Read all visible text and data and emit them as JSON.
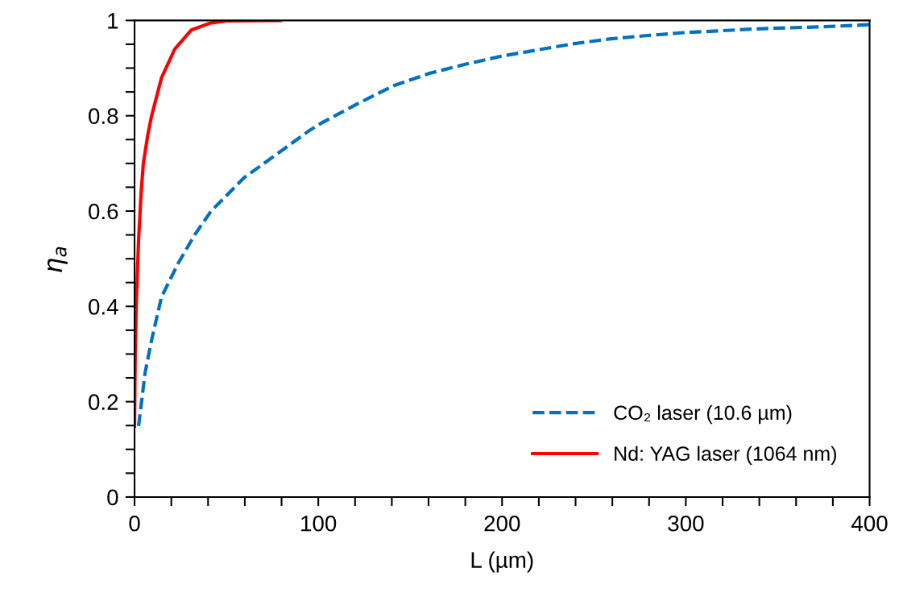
{
  "chart_data": {
    "type": "line",
    "xlabel": "L (µm)",
    "ylabel": "η$_{a}$",
    "xlim": [
      0,
      400
    ],
    "ylim": [
      0,
      1
    ],
    "xticks": [
      0,
      {
        "value": 20,
        "label": null
      },
      {
        "value": 40,
        "label": null
      },
      {
        "value": 60,
        "label": null
      },
      {
        "value": 80,
        "label": null
      },
      100,
      {
        "value": 120,
        "label": null
      },
      {
        "value": 140,
        "label": null
      },
      {
        "value": 160,
        "label": null
      },
      {
        "value": 180,
        "label": null
      },
      200,
      {
        "value": 220,
        "label": null
      },
      {
        "value": 240,
        "label": null
      },
      {
        "value": 260,
        "label": null
      },
      {
        "value": 280,
        "label": null
      },
      300,
      {
        "value": 320,
        "label": null
      },
      {
        "value": 340,
        "label": null
      },
      {
        "value": 360,
        "label": null
      },
      {
        "value": 380,
        "label": null
      },
      400
    ],
    "yticks": [
      0,
      {
        "value": 0.05,
        "label": null
      },
      {
        "value": 0.1,
        "label": null
      },
      {
        "value": 0.15,
        "label": null
      },
      0.2,
      {
        "value": 0.25,
        "label": null
      },
      {
        "value": 0.3,
        "label": null
      },
      {
        "value": 0.35,
        "label": null
      },
      0.4,
      {
        "value": 0.45,
        "label": null
      },
      {
        "value": 0.5,
        "label": null
      },
      {
        "value": 0.55,
        "label": null
      },
      0.6,
      {
        "value": 0.65,
        "label": null
      },
      {
        "value": 0.7,
        "label": null
      },
      {
        "value": 0.75,
        "label": null
      },
      0.8,
      {
        "value": 0.85,
        "label": null
      },
      {
        "value": 0.9,
        "label": null
      },
      {
        "value": 0.95,
        "label": null
      },
      1
    ],
    "grid": false,
    "legend": "bottom right",
    "series": [
      {
        "name": "CO₂ laser (10.6 µm)",
        "color": "#0070c0",
        "line_style": "dashed",
        "x": [
          2.2,
          5.7,
          9.3,
          14.7,
          23.7,
          32.7,
          41.7,
          59.6,
          77.6,
          95.5,
          101.8,
          121.3,
          140.9,
          160.5,
          180,
          199.6,
          219.2,
          238.7,
          258.3,
          277.9,
          297.5,
          336.6,
          375.8,
          399.6
        ],
        "values": [
          0.149,
          0.26,
          0.33,
          0.42,
          0.49,
          0.55,
          0.6,
          0.67,
          0.72,
          0.77,
          0.785,
          0.825,
          0.863,
          0.889,
          0.908,
          0.925,
          0.938,
          0.951,
          0.961,
          0.968,
          0.974,
          0.982,
          0.987,
          0.991
        ]
      },
      {
        "name": "Nd: YAG laser (1064 nm)",
        "color": "#ff0000",
        "line_style": "solid",
        "x": [
          0,
          0.36,
          0.9,
          2.2,
          3.6,
          4.8,
          7.2,
          9.3,
          14.7,
          21.9,
          30.9,
          41.7,
          50.6,
          79.4
        ],
        "values": [
          0.149,
          0.3,
          0.4,
          0.54,
          0.64,
          0.7,
          0.76,
          0.8,
          0.88,
          0.94,
          0.98,
          0.995,
          0.999,
          1.0
        ]
      }
    ]
  }
}
